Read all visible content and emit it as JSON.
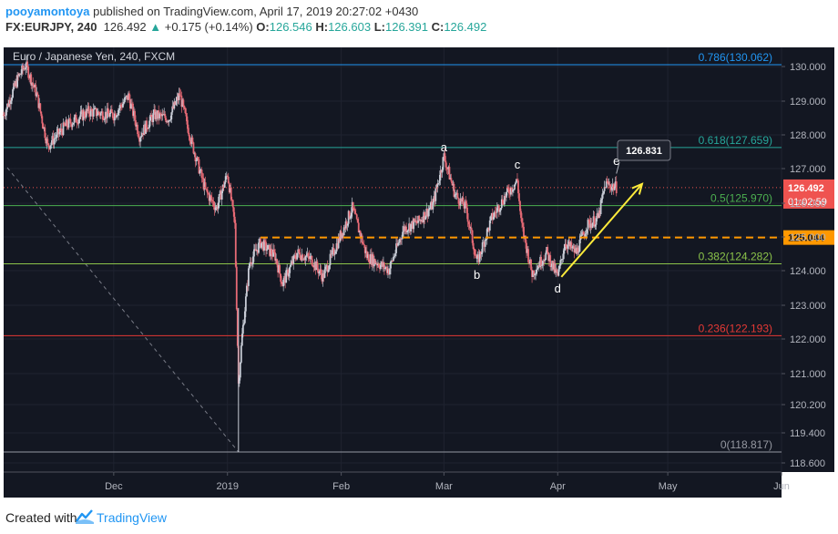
{
  "header": {
    "author": "pooyamontoya",
    "published": "published on TradingView.com, April 17, 2019 20:27:02 +0430",
    "symbol": "FX:EURJPY, 240",
    "last": "126.492",
    "change": "+0.175 (+0.14%)",
    "o_label": "O:",
    "o_value": "126.546",
    "h_label": "H:",
    "h_value": "126.603",
    "l_label": "L:",
    "l_value": "126.391",
    "c_label": "C:",
    "c_value": "126.492"
  },
  "footer": {
    "created_with": "Created with",
    "brand": "TradingView"
  },
  "chart_data": {
    "type": "candlestick",
    "title": "Euro / Japanese Yen, 240, FXCM",
    "x_ticks": [
      "Dec",
      "2019",
      "Feb",
      "Mar",
      "Apr",
      "May",
      "Jun"
    ],
    "y_ticks": [
      "130.000",
      "129.000",
      "128.000",
      "127.000",
      "126.000",
      "125.000",
      "124.000",
      "123.000",
      "122.000",
      "121.000",
      "120.200",
      "119.400",
      "118.600"
    ],
    "price_path": [
      [
        "2018-11-01",
        128.6
      ],
      [
        "2018-11-05",
        129.7
      ],
      [
        "2018-11-07",
        130.06
      ],
      [
        "2018-11-10",
        129.2
      ],
      [
        "2018-11-13",
        127.7
      ],
      [
        "2018-11-18",
        128.3
      ],
      [
        "2018-11-24",
        128.7
      ],
      [
        "2018-12-01",
        128.6
      ],
      [
        "2018-12-05",
        129.15
      ],
      [
        "2018-12-08",
        128.0
      ],
      [
        "2018-12-12",
        128.6
      ],
      [
        "2018-12-16",
        128.5
      ],
      [
        "2018-12-19",
        129.2
      ],
      [
        "2018-12-22",
        127.9
      ],
      [
        "2018-12-26",
        126.4
      ],
      [
        "2018-12-29",
        125.9
      ],
      [
        "2019-01-01",
        126.9
      ],
      [
        "2019-01-03",
        125.4
      ],
      [
        "2019-01-04",
        120.8
      ],
      [
        "2019-01-05",
        122.2
      ],
      [
        "2019-01-07",
        124.3
      ],
      [
        "2019-01-10",
        124.9
      ],
      [
        "2019-01-14",
        124.5
      ],
      [
        "2019-01-16",
        123.7
      ],
      [
        "2019-01-20",
        124.6
      ],
      [
        "2019-01-24",
        124.4
      ],
      [
        "2019-01-27",
        123.9
      ],
      [
        "2019-01-31",
        124.9
      ],
      [
        "2019-02-04",
        125.9
      ],
      [
        "2019-02-08",
        124.5
      ],
      [
        "2019-02-14",
        124.1
      ],
      [
        "2019-02-18",
        125.3
      ],
      [
        "2019-02-22",
        125.5
      ],
      [
        "2019-02-26",
        126.0
      ],
      [
        "2019-03-01",
        127.4
      ],
      [
        "2019-03-04",
        126.3
      ],
      [
        "2019-03-07",
        125.9
      ],
      [
        "2019-03-10",
        124.3
      ],
      [
        "2019-03-14",
        125.6
      ],
      [
        "2019-03-18",
        126.3
      ],
      [
        "2019-03-21",
        126.7
      ],
      [
        "2019-03-22",
        125.5
      ],
      [
        "2019-03-25",
        124.0
      ],
      [
        "2019-03-29",
        124.6
      ],
      [
        "2019-04-01",
        123.9
      ],
      [
        "2019-04-03",
        124.9
      ],
      [
        "2019-04-06",
        124.6
      ],
      [
        "2019-04-09",
        125.4
      ],
      [
        "2019-04-12",
        125.6
      ],
      [
        "2019-04-14",
        126.6
      ],
      [
        "2019-04-17",
        126.5
      ]
    ],
    "fib_levels": [
      {
        "label": "0.786(130.062)",
        "value": 130.062,
        "color": "#2196f3"
      },
      {
        "label": "0.618(127.659)",
        "value": 127.659,
        "color": "#26a69a"
      },
      {
        "label": "0.5(125.970)",
        "value": 125.97,
        "color": "#4caf50"
      },
      {
        "label": "0.382(124.282)",
        "value": 124.282,
        "color": "#8bc34a"
      },
      {
        "label": "0.236(122.193)",
        "value": 122.193,
        "color": "#e53935"
      },
      {
        "label": "0(118.817)",
        "value": 118.817,
        "color": "#9598a1"
      }
    ],
    "support_level": {
      "value": 125.044,
      "label": "125.044",
      "color": "#ff9800"
    },
    "current_price": {
      "value": 126.492,
      "label": "126.492",
      "countdown": "01:02:59",
      "color": "#ef5350"
    },
    "target_label": "126.831",
    "wave_labels": [
      {
        "text": "a",
        "date": "2019-03-01",
        "price": 127.55
      },
      {
        "text": "b",
        "date": "2019-03-10",
        "price": 123.85
      },
      {
        "text": "c",
        "date": "2019-03-21",
        "price": 127.05
      },
      {
        "text": "d",
        "date": "2019-04-01",
        "price": 123.45
      },
      {
        "text": "e",
        "date": "2019-04-17",
        "price": 127.15
      }
    ],
    "arrow": {
      "from_date": "2019-04-02",
      "from_price": 123.9,
      "to_date": "2019-04-24",
      "to_price": 126.6,
      "color": "#ffeb3b"
    }
  }
}
